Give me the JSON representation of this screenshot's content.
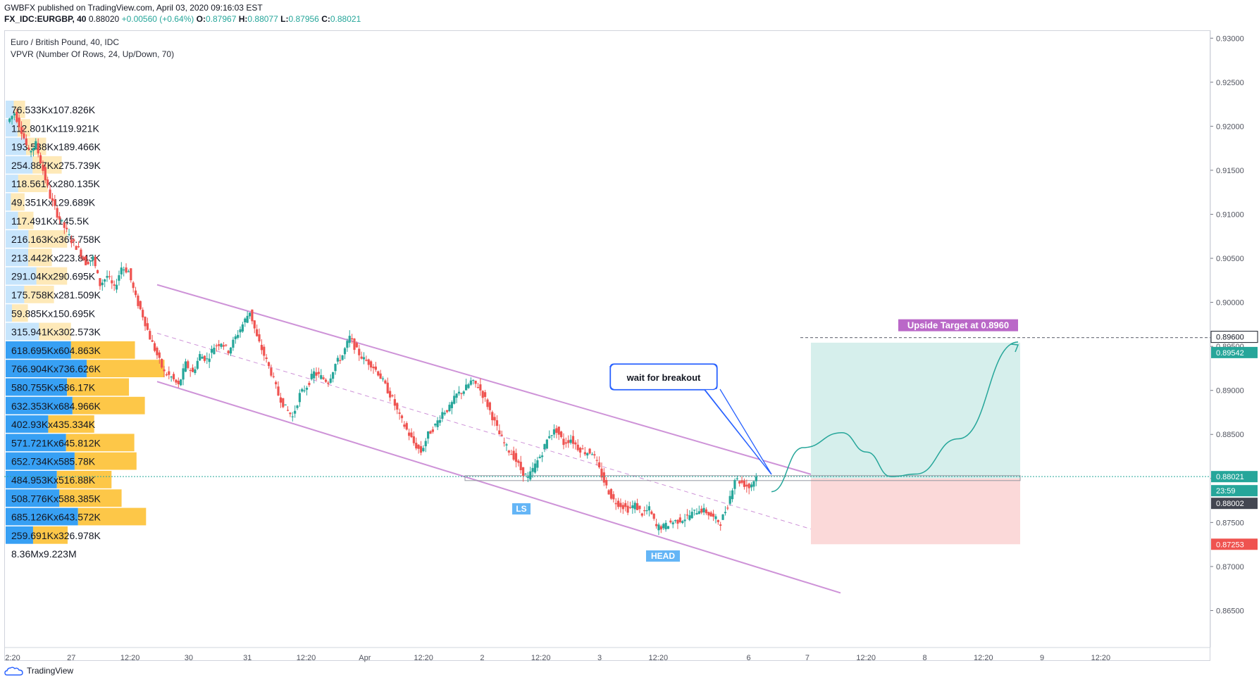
{
  "header": {
    "publisher": "GWBFX published on TradingView.com, April 03, 2020 09:16:03 EST",
    "symbol": "FX_IDC:EURGBP, 40",
    "last": "0.88020",
    "change": "+0.00560 (+0.64%)",
    "o_label": "O:",
    "o_value": "0.87967",
    "h_label": "H:",
    "h_value": "0.88077",
    "l_label": "L:",
    "l_value": "0.87956",
    "c_label": "C:",
    "c_value": "0.88021"
  },
  "legend": {
    "title": "Euro / British Pound, 40, IDC",
    "indicator": "VPVR (Number Of Rows, 24, Up/Down, 70)"
  },
  "footer": {
    "brand": "TradingView"
  },
  "colors": {
    "up": "#26a69a",
    "down": "#ef5350",
    "vp_up": "#2196f3",
    "vp_down": "#fdc134",
    "channel": "#ce93d8",
    "target_label": "#ba68c8",
    "profit_zone": "#d6efec",
    "loss_zone": "#fbd9d9"
  },
  "chart_data": {
    "type": "candlestick",
    "ylim": [
      0.862,
      0.9305
    ],
    "price_ticks": [
      "0.93000",
      "0.92500",
      "0.92000",
      "0.91500",
      "0.91000",
      "0.90500",
      "0.90000",
      "0.89500",
      "0.89000",
      "0.88500",
      "0.88000",
      "0.87500",
      "0.87000",
      "0.86500"
    ],
    "time_ticks": [
      "2:20",
      "27",
      "12:20",
      "30",
      "31",
      "12:20",
      "Apr",
      "12:20",
      "2",
      "12:20",
      "3",
      "12:20",
      "6",
      "7",
      "12:20",
      "8",
      "12:20",
      "9",
      "12:20"
    ],
    "price_tags": [
      {
        "text": "0.89600",
        "price": 0.896,
        "style": "outline"
      },
      {
        "text": "0.89542",
        "price": 0.89542,
        "style": "green"
      },
      {
        "text": "0.88021",
        "price": 0.88021,
        "style": "green"
      },
      {
        "text": "23:59",
        "price": 0.8774,
        "style": "green"
      },
      {
        "text": "0.88002",
        "price": 0.88002,
        "style": "dark"
      },
      {
        "text": "0.87253",
        "price": 0.87253,
        "style": "red"
      }
    ],
    "volume_profile": [
      {
        "label": "76.533Kx107.826K",
        "up": 76.5,
        "down": 107.8
      },
      {
        "label": "112.801Kx119.921K",
        "up": 112.8,
        "down": 119.9
      },
      {
        "label": "193.538Kx189.466K",
        "up": 193.5,
        "down": 189.5
      },
      {
        "label": "254.887Kx275.739K",
        "up": 254.9,
        "down": 275.7
      },
      {
        "label": "118.561Kx280.135K",
        "up": 118.6,
        "down": 280.1
      },
      {
        "label": "49.351Kx129.689K",
        "up": 49.4,
        "down": 129.7
      },
      {
        "label": "117.491Kx145.5K",
        "up": 117.5,
        "down": 145.5
      },
      {
        "label": "216.163Kx365.758K",
        "up": 216.2,
        "down": 365.8
      },
      {
        "label": "213.442Kx223.843K",
        "up": 213.4,
        "down": 223.8
      },
      {
        "label": "291.04Kx290.695K",
        "up": 291.0,
        "down": 290.7
      },
      {
        "label": "175.758Kx281.509K",
        "up": 175.8,
        "down": 281.5
      },
      {
        "label": "59.885Kx150.695K",
        "up": 59.9,
        "down": 150.7
      },
      {
        "label": "315.941Kx302.573K",
        "up": 315.9,
        "down": 302.6
      },
      {
        "label": "618.695Kx604.863K",
        "up": 618.7,
        "down": 604.9
      },
      {
        "label": "766.904Kx736.626K",
        "up": 766.9,
        "down": 736.6
      },
      {
        "label": "580.755Kx586.17K",
        "up": 580.8,
        "down": 586.2
      },
      {
        "label": "632.353Kx684.966K",
        "up": 632.4,
        "down": 685.0
      },
      {
        "label": "402.93Kx435.334K",
        "up": 402.9,
        "down": 435.3
      },
      {
        "label": "571.721Kx645.812K",
        "up": 571.7,
        "down": 645.8
      },
      {
        "label": "652.734Kx585.78K",
        "up": 652.7,
        "down": 585.8
      },
      {
        "label": "484.953Kx516.88K",
        "up": 485.0,
        "down": 516.9
      },
      {
        "label": "508.776Kx588.385K",
        "up": 508.8,
        "down": 588.4
      },
      {
        "label": "685.126Kx643.572K",
        "up": 685.1,
        "down": 643.6
      },
      {
        "label": "259.691Kx326.978K",
        "up": 259.7,
        "down": 327.0
      },
      {
        "label": "8.36Mx9.223M",
        "up": 0,
        "down": 0
      }
    ],
    "path_points": [
      0.9205,
      0.9215,
      0.9195,
      0.917,
      0.918,
      0.915,
      0.912,
      0.91,
      0.9085,
      0.907,
      0.906,
      0.9045,
      0.905,
      0.902,
      0.903,
      0.9015,
      0.904,
      0.9035,
      0.9005,
      0.8985,
      0.896,
      0.894,
      0.892,
      0.8915,
      0.8905,
      0.893,
      0.892,
      0.894,
      0.8935,
      0.895,
      0.8955,
      0.8945,
      0.896,
      0.8975,
      0.899,
      0.896,
      0.894,
      0.892,
      0.8895,
      0.888,
      0.887,
      0.8895,
      0.8905,
      0.892,
      0.8915,
      0.891,
      0.893,
      0.894,
      0.896,
      0.8945,
      0.8935,
      0.893,
      0.892,
      0.8905,
      0.889,
      0.887,
      0.8855,
      0.884,
      0.883,
      0.885,
      0.886,
      0.8875,
      0.888,
      0.8895,
      0.89,
      0.891,
      0.8905,
      0.889,
      0.887,
      0.885,
      0.8835,
      0.8825,
      0.881,
      0.88,
      0.8815,
      0.883,
      0.885,
      0.8855,
      0.884,
      0.8845,
      0.8835,
      0.883,
      0.883,
      0.881,
      0.879,
      0.8775,
      0.877,
      0.8765,
      0.877,
      0.876,
      0.8765,
      0.8745,
      0.8745,
      0.875,
      0.8752,
      0.8755,
      0.876,
      0.8765,
      0.8762,
      0.8755,
      0.875,
      0.877,
      0.88,
      0.8795,
      0.879,
      0.8802
    ],
    "annotations": {
      "callout": "wait for breakout",
      "ls": "LS",
      "head": "HEAD",
      "target": "Upside Target at 0.8960"
    },
    "channel": {
      "upper_start": 0.902,
      "upper_end": 0.8795,
      "lower_start": 0.891,
      "lower_end": 0.867
    },
    "neckline": 0.88,
    "target_price": 0.896,
    "position": {
      "entry": 0.88,
      "target": 0.89542,
      "stop": 0.87253
    },
    "projection": [
      0.8785,
      0.8835,
      0.8852,
      0.883,
      0.8802,
      0.8805,
      0.8845,
      0.8955
    ]
  }
}
